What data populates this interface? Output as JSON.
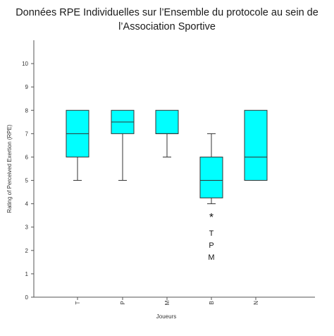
{
  "chart_data": {
    "type": "box",
    "title_line1": "Données RPE Individuelles sur l’Ensemble du protocole au sein de",
    "title_line2": "l’Association Sportive",
    "xlabel": "Joueurs",
    "ylabel": "Rating of Perceived Exertion (RPE)",
    "ylim": [
      0,
      11
    ],
    "yticks": [
      "0",
      "1",
      "2",
      "3",
      "4",
      "5",
      "6",
      "7",
      "8",
      "9",
      "10"
    ],
    "categories": [
      "T",
      "P",
      "M",
      "B",
      "N"
    ],
    "box_color": "#00ffff",
    "series": [
      {
        "category": "T",
        "min": 5,
        "q1": 6,
        "median": 7,
        "q3": 8,
        "max": 8
      },
      {
        "category": "P",
        "min": 5,
        "q1": 7,
        "median": 7.5,
        "q3": 8,
        "max": 8
      },
      {
        "category": "M",
        "min": 6,
        "q1": 7,
        "median": 7,
        "q3": 8,
        "max": 8
      },
      {
        "category": "B",
        "min": 4,
        "q1": 4.25,
        "median": 5,
        "q3": 6,
        "max": 7
      },
      {
        "category": "N",
        "min": 5,
        "q1": 5,
        "median": 6,
        "q3": 8,
        "max": 8
      }
    ],
    "outliers": [
      {
        "category": "B",
        "value": 3.5,
        "marker": "*",
        "labels": [
          "T",
          "P",
          "M"
        ]
      }
    ],
    "grid": false
  }
}
